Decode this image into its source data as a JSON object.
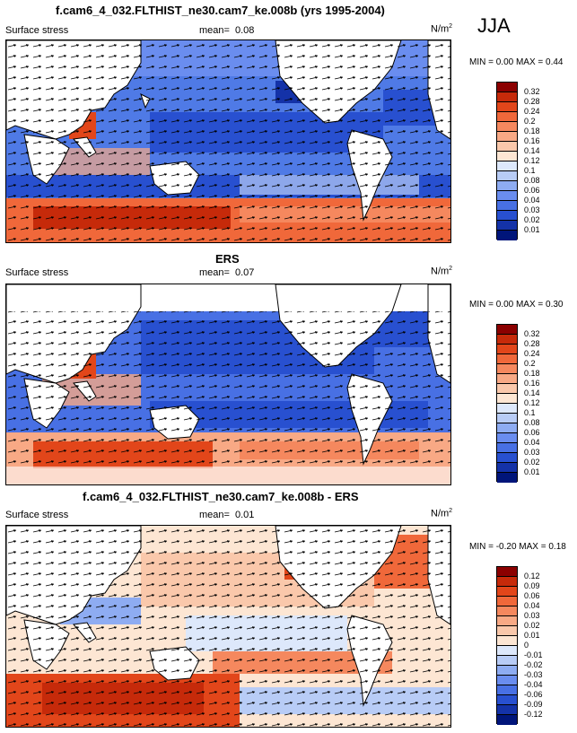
{
  "season": "JJA",
  "panels": [
    {
      "title": "f.cam6_4_032.FLTHIST_ne30.cam7_ke.008b (yrs 1995-2004)",
      "variable": "Surface stress",
      "mean_label": "mean=",
      "mean": "0.08",
      "units": "N/m",
      "units_exp": "2",
      "minmax": "MIN =   0.00 MAX =   0.44",
      "colorbar": {
        "labels": [
          "0.32",
          "0.28",
          "0.24",
          "0.2",
          "0.18",
          "0.16",
          "0.14",
          "0.12",
          "0.1",
          "0.08",
          "0.06",
          "0.04",
          "0.03",
          "0.02",
          "0.01"
        ],
        "colors": [
          "#8b0000",
          "#c62a0a",
          "#e2461a",
          "#f0683a",
          "#f5885e",
          "#f8a985",
          "#fac8ab",
          "#fde6d3",
          "#dde8fb",
          "#b8ccf6",
          "#8eacf2",
          "#6a8def",
          "#4870e4",
          "#2850d0",
          "#1432a8",
          "#00157a"
        ]
      }
    },
    {
      "title": "ERS",
      "variable": "Surface stress",
      "mean_label": "mean=",
      "mean": "0.07",
      "units": "N/m",
      "units_exp": "2",
      "minmax": "MIN =   0.00 MAX =   0.30",
      "colorbar": {
        "labels": [
          "0.32",
          "0.28",
          "0.24",
          "0.2",
          "0.18",
          "0.16",
          "0.14",
          "0.12",
          "0.1",
          "0.08",
          "0.06",
          "0.04",
          "0.03",
          "0.02",
          "0.01"
        ],
        "colors": [
          "#8b0000",
          "#c62a0a",
          "#e2461a",
          "#f0683a",
          "#f5885e",
          "#f8a985",
          "#fac8ab",
          "#fde6d3",
          "#dde8fb",
          "#b8ccf6",
          "#8eacf2",
          "#6a8def",
          "#4870e4",
          "#2850d0",
          "#1432a8",
          "#00157a"
        ]
      }
    },
    {
      "title": "f.cam6_4_032.FLTHIST_ne30.cam7_ke.008b - ERS",
      "variable": "Surface stress",
      "mean_label": "mean=",
      "mean": "0.01",
      "units": "N/m",
      "units_exp": "2",
      "minmax": "MIN =  -0.20 MAX =   0.18",
      "colorbar": {
        "labels": [
          "0.12",
          "0.09",
          "0.06",
          "0.04",
          "0.03",
          "0.02",
          "0.01",
          "0",
          "-0.01",
          "-0.02",
          "-0.03",
          "-0.04",
          "-0.06",
          "-0.09",
          "-0.12"
        ],
        "colors": [
          "#8b0000",
          "#c62a0a",
          "#e2461a",
          "#f0683a",
          "#f5885e",
          "#f8a985",
          "#fac8ab",
          "#fde6d3",
          "#dde8fb",
          "#b8ccf6",
          "#8eacf2",
          "#6a8def",
          "#4870e4",
          "#2850d0",
          "#1432a8",
          "#00157a"
        ]
      }
    }
  ]
}
